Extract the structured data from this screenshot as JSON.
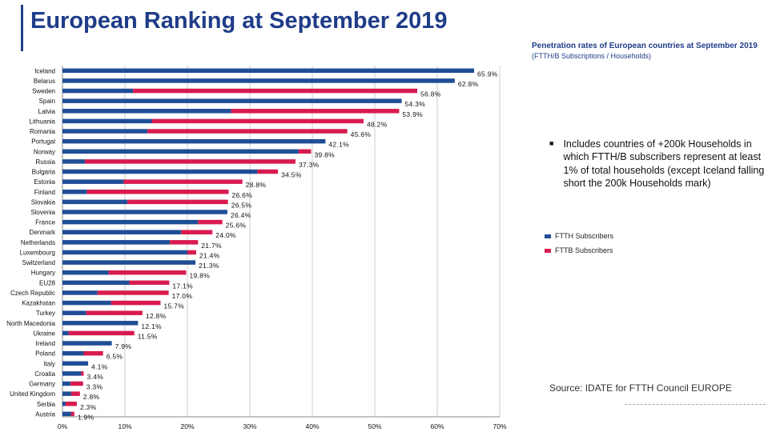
{
  "page": {
    "title": "European Ranking at September 2019",
    "chart_title": "Penetration rates of European countries at September 2019",
    "chart_subtitle": "(FTTH/B Subscriptions / Households)",
    "note": "Includes countries of +200k Households in which FTTH/B subscribers represent at least 1% of total households (except Iceland falling short the 200k Households mark)",
    "source": "Source: IDATE for FTTH Council EUROPE",
    "accent_color": "#1f3c88"
  },
  "chart_data": {
    "type": "bar",
    "orientation": "horizontal",
    "stacked": true,
    "categories": [
      "Iceland",
      "Belarus",
      "Sweden",
      "Spain",
      "Latvia",
      "Lithuania",
      "Romania",
      "Portugal",
      "Norway",
      "Russia",
      "Bulgaria",
      "Estonia",
      "Finland",
      "Slovakia",
      "Slovenia",
      "France",
      "Denmark",
      "Netherlands",
      "Luxembourg",
      "Switzerland",
      "Hungary",
      "EU28",
      "Czech Republic",
      "Kazakhstan",
      "Turkey",
      "North Macedonia",
      "Ukraine",
      "Ireland",
      "Poland",
      "Italy",
      "Croatia",
      "Germany",
      "United Kingdom",
      "Serbia",
      "Austria"
    ],
    "series": [
      {
        "name": "FTTH Subscribers",
        "color": "#1f4e96",
        "values": [
          65.9,
          62.8,
          11.3,
          54.3,
          27.0,
          14.3,
          13.6,
          42.1,
          37.8,
          3.6,
          31.2,
          9.8,
          3.9,
          10.4,
          26.4,
          21.7,
          19.0,
          17.2,
          20.0,
          21.3,
          7.4,
          10.7,
          5.6,
          7.8,
          3.8,
          12.1,
          1.0,
          7.9,
          3.4,
          4.1,
          3.0,
          1.3,
          1.4,
          0.5,
          1.4
        ]
      },
      {
        "name": "FTTB Subscribers",
        "color": "#d81b4f",
        "values": [
          0.0,
          0.0,
          45.5,
          0.0,
          26.9,
          33.9,
          32.0,
          0.0,
          2.0,
          33.7,
          3.3,
          19.0,
          22.7,
          16.1,
          0.0,
          3.9,
          5.0,
          4.5,
          1.4,
          0.0,
          12.4,
          6.4,
          11.4,
          7.9,
          9.0,
          0.0,
          10.5,
          0.0,
          3.1,
          0.0,
          0.4,
          2.0,
          1.4,
          1.8,
          0.5
        ]
      }
    ],
    "value_labels": [
      "65.9%",
      "62.8%",
      "56.8%",
      "54.3%",
      "53.9%",
      "48.2%",
      "45.6%",
      "42.1%",
      "39.8%",
      "37.3%",
      "34.5%",
      "28.8%",
      "26.6%",
      "26.5%",
      "26.4%",
      "25.6%",
      "24.0%",
      "21.7%",
      "21.4%",
      "21.3%",
      "19.8%",
      "17.1%",
      "17.0%",
      "15.7%",
      "12.8%",
      "12.1%",
      "11.5%",
      "7.9%",
      "6.5%",
      "4.1%",
      "3.4%",
      "3.3%",
      "2.8%",
      "2.3%",
      "1.9%"
    ],
    "xlim": [
      0,
      70
    ],
    "xticks": [
      "0%",
      "10%",
      "20%",
      "30%",
      "40%",
      "50%",
      "60%",
      "70%"
    ],
    "grid": true,
    "legend": "right"
  }
}
